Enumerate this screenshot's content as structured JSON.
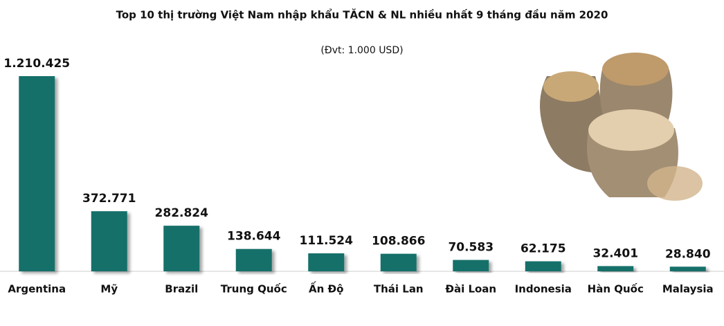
{
  "chart_data": {
    "type": "bar",
    "title": "Top 10 thị trường Việt Nam nhập khẩu TĂCN & NL nhiều nhất 9 tháng đầu năm 2020",
    "subtitle": "(Đvt: 1.000 USD)",
    "categories": [
      "Argentina",
      "Mỹ",
      "Brazil",
      "Trung Quốc",
      "Ấn Độ",
      "Thái Lan",
      "Đài Loan",
      "Indonesia",
      "Hàn Quốc",
      "Malaysia"
    ],
    "values": [
      1210425,
      372771,
      282824,
      138644,
      111524,
      108866,
      70583,
      62175,
      32401,
      28840
    ],
    "value_labels": [
      "1.210.425",
      "372.771",
      "282.824",
      "138.644",
      "111.524",
      "108.866",
      "70.583",
      "62.175",
      "32.401",
      "28.840"
    ],
    "color": "#19706b"
  }
}
